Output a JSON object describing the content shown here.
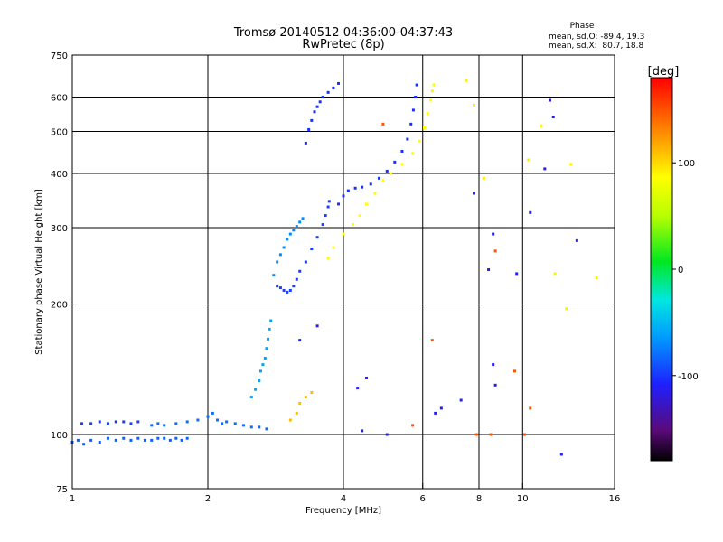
{
  "chart_data": {
    "type": "scatter",
    "title": "Tromsø 20140512 04:36:00-04:37:43",
    "subtitle": "RwPretec (8p)",
    "phase_stats": {
      "header": "Phase",
      "line_o": "mean, sd,O: -89.4, 19.3",
      "line_x": "mean, sd,X:  80.7, 18.8"
    },
    "xlabel": "Frequency [MHz]",
    "ylabel": "Stationary phase Virtual Height [km]",
    "x_scale": "log",
    "y_scale": "log",
    "xlim": [
      1,
      16
    ],
    "ylim": [
      75,
      750
    ],
    "x_ticks": [
      {
        "value": 1,
        "label": "1"
      },
      {
        "value": 2,
        "label": "2"
      },
      {
        "value": 4,
        "label": "4"
      },
      {
        "value": 6,
        "label": "6"
      },
      {
        "value": 8,
        "label": "8"
      },
      {
        "value": 10,
        "label": "10"
      },
      {
        "value": 16,
        "label": "16"
      }
    ],
    "x_gridlines": [
      2,
      4,
      6,
      8,
      10
    ],
    "y_ticks": [
      {
        "value": 75,
        "label": "75"
      },
      {
        "value": 100,
        "label": "100"
      },
      {
        "value": 200,
        "label": "200"
      },
      {
        "value": 300,
        "label": "300"
      },
      {
        "value": 400,
        "label": "400"
      },
      {
        "value": 500,
        "label": "500"
      },
      {
        "value": 600,
        "label": "600"
      },
      {
        "value": 750,
        "label": "750"
      }
    ],
    "y_gridlines": [
      100,
      200,
      300,
      400,
      500,
      600
    ],
    "grid": true,
    "colorbar": {
      "label": "[deg]",
      "range": [
        -180,
        180
      ],
      "ticks": [
        {
          "value": 100,
          "label": "100"
        },
        {
          "value": 0,
          "label": "0"
        },
        {
          "value": -100,
          "label": "-100"
        }
      ]
    },
    "series": [
      {
        "phase": -85,
        "points": [
          [
            1.0,
            96
          ],
          [
            1.03,
            97
          ],
          [
            1.06,
            95
          ],
          [
            1.1,
            97
          ],
          [
            1.15,
            96
          ],
          [
            1.2,
            98
          ],
          [
            1.25,
            97
          ],
          [
            1.3,
            98
          ],
          [
            1.35,
            97
          ],
          [
            1.4,
            98
          ],
          [
            1.45,
            97
          ],
          [
            1.5,
            97
          ],
          [
            1.55,
            98
          ],
          [
            1.6,
            98
          ],
          [
            1.65,
            97
          ],
          [
            1.7,
            98
          ],
          [
            1.75,
            97
          ],
          [
            1.8,
            98
          ]
        ]
      },
      {
        "phase": -95,
        "points": [
          [
            1.05,
            106
          ],
          [
            1.1,
            106
          ],
          [
            1.15,
            107
          ],
          [
            1.2,
            106
          ],
          [
            1.25,
            107
          ],
          [
            1.3,
            107
          ],
          [
            1.35,
            106
          ],
          [
            1.4,
            107
          ]
        ]
      },
      {
        "phase": -80,
        "points": [
          [
            1.5,
            105
          ],
          [
            1.55,
            106
          ],
          [
            1.6,
            105
          ],
          [
            1.7,
            106
          ],
          [
            1.8,
            107
          ],
          [
            1.9,
            108
          ],
          [
            2.0,
            110
          ],
          [
            2.05,
            112
          ],
          [
            2.1,
            108
          ],
          [
            2.15,
            106
          ],
          [
            2.2,
            107
          ],
          [
            2.3,
            106
          ],
          [
            2.4,
            105
          ],
          [
            2.5,
            104
          ],
          [
            2.6,
            104
          ],
          [
            2.7,
            103
          ]
        ]
      },
      {
        "phase": -60,
        "points": [
          [
            2.5,
            122
          ],
          [
            2.55,
            127
          ],
          [
            2.6,
            133
          ],
          [
            2.62,
            140
          ],
          [
            2.65,
            145
          ],
          [
            2.68,
            150
          ],
          [
            2.7,
            158
          ],
          [
            2.72,
            166
          ],
          [
            2.74,
            175
          ],
          [
            2.76,
            183
          ]
        ]
      },
      {
        "phase": -70,
        "points": [
          [
            2.8,
            233
          ],
          [
            2.85,
            250
          ],
          [
            2.9,
            260
          ],
          [
            2.95,
            270
          ],
          [
            3.0,
            282
          ],
          [
            3.05,
            290
          ],
          [
            3.1,
            296
          ],
          [
            3.15,
            302
          ],
          [
            3.2,
            309
          ],
          [
            3.25,
            315
          ]
        ]
      },
      {
        "phase": -95,
        "points": [
          [
            2.85,
            220
          ],
          [
            2.9,
            218
          ],
          [
            2.95,
            215
          ],
          [
            3.0,
            213
          ],
          [
            3.05,
            215
          ],
          [
            3.1,
            220
          ],
          [
            3.15,
            228
          ],
          [
            3.2,
            238
          ],
          [
            3.3,
            250
          ],
          [
            3.4,
            268
          ],
          [
            3.5,
            285
          ],
          [
            3.6,
            305
          ],
          [
            3.65,
            320
          ],
          [
            3.7,
            335
          ],
          [
            3.72,
            345
          ]
        ]
      },
      {
        "phase": -100,
        "points": [
          [
            3.3,
            470
          ],
          [
            3.35,
            505
          ],
          [
            3.4,
            530
          ],
          [
            3.45,
            555
          ],
          [
            3.5,
            570
          ],
          [
            3.55,
            585
          ],
          [
            3.6,
            600
          ],
          [
            3.7,
            615
          ],
          [
            3.8,
            630
          ],
          [
            3.9,
            645
          ]
        ]
      },
      {
        "phase": -100,
        "points": [
          [
            3.9,
            340
          ],
          [
            4.0,
            355
          ],
          [
            4.1,
            365
          ],
          [
            4.25,
            370
          ],
          [
            4.4,
            372
          ],
          [
            4.6,
            378
          ],
          [
            4.8,
            390
          ],
          [
            5.0,
            405
          ],
          [
            5.2,
            425
          ],
          [
            5.4,
            450
          ],
          [
            5.55,
            480
          ],
          [
            5.65,
            520
          ],
          [
            5.72,
            560
          ],
          [
            5.78,
            600
          ],
          [
            5.82,
            640
          ]
        ]
      },
      {
        "phase": 85,
        "points": [
          [
            3.7,
            255
          ],
          [
            3.8,
            270
          ],
          [
            4.0,
            290
          ],
          [
            4.2,
            305
          ],
          [
            4.35,
            320
          ],
          [
            4.5,
            340
          ],
          [
            4.7,
            360
          ],
          [
            4.9,
            385
          ],
          [
            5.1,
            400
          ],
          [
            5.4,
            420
          ],
          [
            5.7,
            445
          ],
          [
            5.9,
            475
          ],
          [
            6.05,
            510
          ],
          [
            6.15,
            550
          ],
          [
            6.25,
            590
          ],
          [
            6.35,
            640
          ]
        ]
      },
      {
        "phase": 110,
        "points": [
          [
            3.05,
            108
          ],
          [
            3.15,
            112
          ],
          [
            3.2,
            118
          ],
          [
            3.3,
            122
          ],
          [
            3.4,
            125
          ]
        ]
      },
      {
        "phase": -110,
        "points": [
          [
            3.2,
            165
          ],
          [
            3.5,
            178
          ],
          [
            4.3,
            128
          ],
          [
            4.5,
            135
          ],
          [
            4.4,
            102
          ],
          [
            5.0,
            100
          ],
          [
            6.4,
            112
          ],
          [
            6.6,
            115
          ],
          [
            7.3,
            120
          ],
          [
            7.8,
            360
          ],
          [
            8.4,
            240
          ],
          [
            8.6,
            290
          ],
          [
            8.6,
            145
          ],
          [
            8.7,
            130
          ],
          [
            9.7,
            235
          ],
          [
            10.4,
            325
          ],
          [
            11.2,
            410
          ],
          [
            11.5,
            590
          ],
          [
            11.7,
            540
          ],
          [
            12.2,
            90
          ],
          [
            13.2,
            280
          ]
        ]
      },
      {
        "phase": 150,
        "points": [
          [
            4.9,
            520
          ],
          [
            5.7,
            105
          ],
          [
            6.3,
            165
          ],
          [
            7.9,
            100
          ],
          [
            8.5,
            100
          ],
          [
            8.7,
            265
          ],
          [
            9.6,
            140
          ],
          [
            10.1,
            100
          ],
          [
            10.4,
            115
          ]
        ]
      },
      {
        "phase": 90,
        "points": [
          [
            6.3,
            620
          ],
          [
            7.5,
            655
          ],
          [
            7.8,
            575
          ],
          [
            8.2,
            390
          ],
          [
            10.3,
            430
          ],
          [
            11.0,
            515
          ],
          [
            11.8,
            235
          ],
          [
            12.5,
            195
          ],
          [
            12.8,
            420
          ],
          [
            14.6,
            230
          ]
        ]
      }
    ]
  }
}
